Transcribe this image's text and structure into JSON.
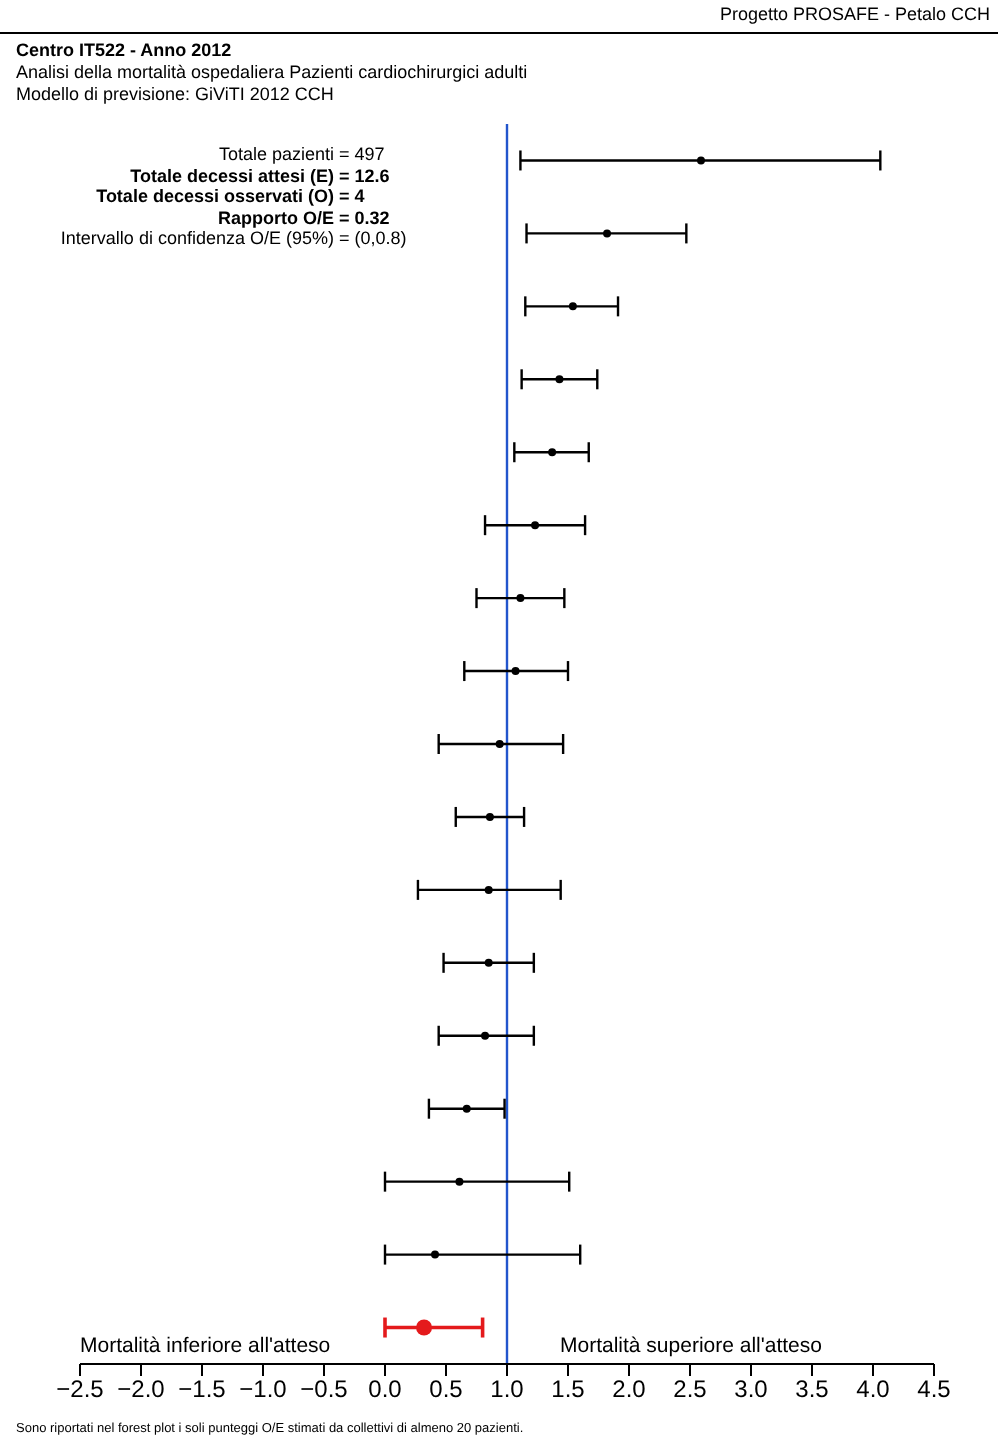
{
  "chart_data": {
    "type": "scatter",
    "orientation": "horizontal",
    "title": "Centro IT522 - Anno 2012",
    "subtitle": "Analisi della mortalità ospedaliera Pazienti cardiochirurgici adulti",
    "annotations": [
      "Progetto PROSAFE - Petalo CCH",
      "Modello di previsione: GiViTI 2012 CCH",
      "Totale pazienti = 497",
      "Totale decessi attesi (E) = 12.6",
      "Totale decessi osservati (O) = 4",
      "Rapporto O/E = 0.32",
      "Intervallo di confidenza O/E (95%) = (0,0.8)",
      "Mortalità inferiore all'atteso",
      "Mortalità superiore all'atteso",
      "Sono riportati nel forest plot i soli punteggi O/E stimati da collettivi di almeno 20 pazienti."
    ],
    "categories": [
      null,
      null,
      null,
      null,
      null,
      null,
      null,
      null,
      null,
      null,
      null,
      null,
      null,
      null,
      null,
      null,
      null
    ],
    "series": [
      {
        "color": "#000000",
        "values": [
          2.59,
          1.82,
          1.54,
          1.43,
          1.37,
          1.23,
          1.11,
          1.07,
          0.94,
          0.86,
          0.85,
          0.85,
          0.82,
          0.67,
          0.61,
          0.41,
          null
        ],
        "errors": [
          [
            1.11,
            4.06
          ],
          [
            1.16,
            2.47
          ],
          [
            1.15,
            1.91
          ],
          [
            1.12,
            1.74
          ],
          [
            1.06,
            1.67
          ],
          [
            0.82,
            1.64
          ],
          [
            0.75,
            1.47
          ],
          [
            0.65,
            1.5
          ],
          [
            0.44,
            1.46
          ],
          [
            0.58,
            1.14
          ],
          [
            0.27,
            1.44
          ],
          [
            0.48,
            1.22
          ],
          [
            0.44,
            1.22
          ],
          [
            0.36,
            0.98
          ],
          [
            0,
            1.51
          ],
          [
            0,
            1.6
          ],
          null
        ]
      },
      {
        "color": "#e41a1c",
        "values": [
          null,
          null,
          null,
          null,
          null,
          null,
          null,
          null,
          null,
          null,
          null,
          null,
          null,
          null,
          null,
          null,
          0.32
        ],
        "errors": [
          null,
          null,
          null,
          null,
          null,
          null,
          null,
          null,
          null,
          null,
          null,
          null,
          null,
          null,
          null,
          null,
          [
            0,
            0.8
          ]
        ]
      }
    ],
    "xlim": [
      -2.5,
      4.5
    ],
    "xticks": [
      {
        "value": -2.5,
        "label": "−2.5"
      },
      {
        "value": -2,
        "label": "−2.0"
      },
      {
        "value": -1.5,
        "label": "−1.5"
      },
      {
        "value": -1,
        "label": "−1.0"
      },
      {
        "value": -0.5,
        "label": "−0.5"
      },
      {
        "value": 0,
        "label": "0.0"
      },
      {
        "value": 0.5,
        "label": "0.5"
      },
      {
        "value": 1,
        "label": "1.0"
      },
      {
        "value": 1.5,
        "label": "1.5"
      },
      {
        "value": 2,
        "label": "2.0"
      },
      {
        "value": 2.5,
        "label": "2.5"
      },
      {
        "value": 3,
        "label": "3.0"
      },
      {
        "value": 3.5,
        "label": "3.5"
      },
      {
        "value": 4,
        "label": "4.0"
      },
      {
        "value": 4.5,
        "label": "4.5"
      }
    ],
    "ref_lines": [
      {
        "axis": "x",
        "value": 1,
        "color": "#2255cc"
      }
    ],
    "marker": "circle",
    "tick_labels": "x"
  }
}
